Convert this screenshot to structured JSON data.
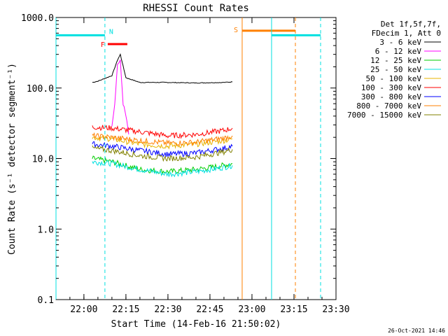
{
  "chart_data": {
    "type": "line",
    "title": "RHESSI Count Rates",
    "xlabel": "Start Time (14-Feb-16 21:50:02)",
    "ylabel": "Count Rate (s⁻¹ detector segment⁻¹)",
    "yscale": "log",
    "ylim": [
      0.1,
      1000
    ],
    "xlim": [
      "21:50:02",
      "23:30:00"
    ],
    "x_ticks": [
      "22:00",
      "22:15",
      "22:30",
      "22:45",
      "23:00",
      "23:15",
      "23:30"
    ],
    "y_ticks": [
      "0.1",
      "1.0",
      "10.0",
      "100.0",
      "1000.0"
    ],
    "grid": false,
    "legend_position": "top-right",
    "legend_header": [
      "Det 1f,5f,7f,",
      "FDecim 1, Att 0"
    ],
    "timestamp": "26-Oct-2021 14:46",
    "series": [
      {
        "name": "3 - 6 keV",
        "color": "#000000",
        "data": [
          [
            "22:03",
            120
          ],
          [
            "22:05",
            125
          ],
          [
            "22:10",
            150
          ],
          [
            "22:12",
            250
          ],
          [
            "22:13",
            300
          ],
          [
            "22:15",
            140
          ],
          [
            "22:20",
            120
          ],
          [
            "22:30",
            120
          ],
          [
            "22:40",
            118
          ],
          [
            "22:50",
            120
          ],
          [
            "22:53",
            122
          ]
        ]
      },
      {
        "name": "6 - 12 keV",
        "color": "#ff00ff",
        "data": [
          [
            "22:10",
            30
          ],
          [
            "22:11",
            60
          ],
          [
            "22:12",
            220
          ],
          [
            "22:13",
            240
          ],
          [
            "22:14",
            60
          ],
          [
            "22:15",
            40
          ],
          [
            "22:16",
            22
          ]
        ]
      },
      {
        "name": "12 - 25 keV",
        "color": "#00cc00",
        "data": [
          [
            "22:03",
            10
          ],
          [
            "22:10",
            9
          ],
          [
            "22:20",
            7
          ],
          [
            "22:30",
            6.5
          ],
          [
            "22:40",
            7
          ],
          [
            "22:50",
            8
          ],
          [
            "22:53",
            8.5
          ]
        ]
      },
      {
        "name": "25 - 50 keV",
        "color": "#00e0e0",
        "data": [
          [
            "22:03",
            9
          ],
          [
            "22:10",
            8.5
          ],
          [
            "22:20",
            7
          ],
          [
            "22:30",
            6
          ],
          [
            "22:40",
            6.5
          ],
          [
            "22:50",
            7.5
          ],
          [
            "22:53",
            8
          ]
        ]
      },
      {
        "name": "50 - 100 keV",
        "color": "#e8b400",
        "data": [
          [
            "22:03",
            20
          ],
          [
            "22:10",
            19
          ],
          [
            "22:20",
            16
          ],
          [
            "22:30",
            15
          ],
          [
            "22:40",
            16
          ],
          [
            "22:50",
            18
          ],
          [
            "22:53",
            19
          ]
        ]
      },
      {
        "name": "100 - 300 keV",
        "color": "#ff0000",
        "data": [
          [
            "22:03",
            28
          ],
          [
            "22:10",
            27
          ],
          [
            "22:20",
            24
          ],
          [
            "22:30",
            21
          ],
          [
            "22:40",
            22
          ],
          [
            "22:50",
            25
          ],
          [
            "22:53",
            27
          ]
        ]
      },
      {
        "name": "300 - 800 keV",
        "color": "#0000ff",
        "data": [
          [
            "22:03",
            16
          ],
          [
            "22:10",
            15
          ],
          [
            "22:20",
            13
          ],
          [
            "22:30",
            11.5
          ],
          [
            "22:40",
            12
          ],
          [
            "22:50",
            14
          ],
          [
            "22:53",
            15
          ]
        ]
      },
      {
        "name": "800 - 7000 keV",
        "color": "#ff8000",
        "data": [
          [
            "22:03",
            21
          ],
          [
            "22:10",
            20
          ],
          [
            "22:20",
            18
          ],
          [
            "22:30",
            16.5
          ],
          [
            "22:40",
            17
          ],
          [
            "22:50",
            19.5
          ],
          [
            "22:53",
            21
          ]
        ]
      },
      {
        "name": "7000 - 15000 keV",
        "color": "#808000",
        "data": [
          [
            "22:03",
            14
          ],
          [
            "22:10",
            13
          ],
          [
            "22:20",
            11
          ],
          [
            "22:30",
            10
          ],
          [
            "22:40",
            10.5
          ],
          [
            "22:50",
            12.5
          ],
          [
            "22:53",
            13.5
          ]
        ]
      }
    ],
    "annotations": [
      {
        "label": "N",
        "color": "#00e0e0",
        "type": "interval",
        "start": "21:50:02",
        "end": "22:07:30",
        "level": 560
      },
      {
        "label": "",
        "color": "#00e0e0",
        "type": "interval",
        "start": "23:07:00",
        "end": "23:24:30",
        "level": 560
      },
      {
        "label": "F",
        "color": "#ff0000",
        "type": "interval",
        "start": "22:08:30",
        "end": "22:15:30",
        "level": 420
      },
      {
        "label": "S",
        "color": "#ff8000",
        "type": "interval",
        "start": "22:56:30",
        "end": "23:15:30",
        "level": 650
      },
      {
        "label": "",
        "color": "#00e0e0",
        "type": "dashed-line",
        "at": "22:07:30"
      },
      {
        "label": "",
        "color": "#00e0e0",
        "type": "dashed-line",
        "at": "23:24:30"
      },
      {
        "label": "",
        "color": "#ff8000",
        "type": "dashed-line",
        "at": "23:15:30"
      },
      {
        "label": "",
        "color": "#00e0e0",
        "type": "solid-line",
        "at": "21:50:02"
      },
      {
        "label": "",
        "color": "#00e0e0",
        "type": "solid-line",
        "at": "23:07:00"
      },
      {
        "label": "",
        "color": "#ff8000",
        "type": "solid-line",
        "at": "22:56:30"
      }
    ]
  }
}
